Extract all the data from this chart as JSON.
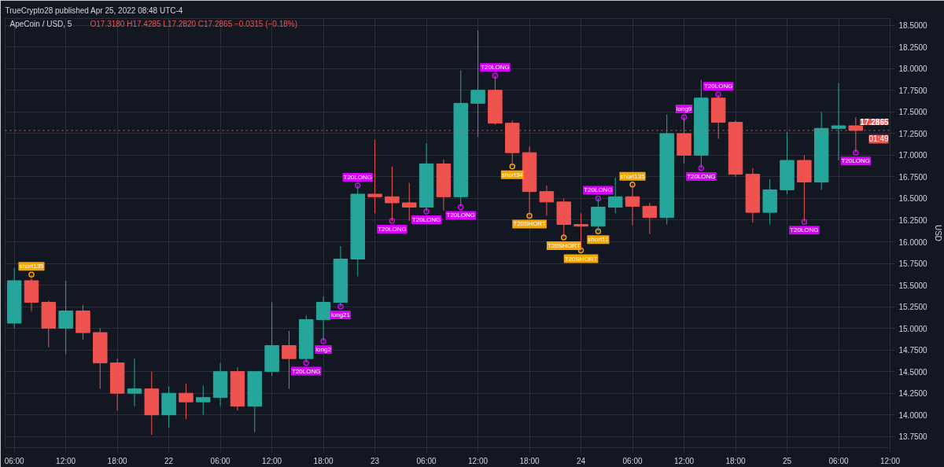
{
  "chart_data": {
    "type": "candlestick",
    "title": "ApeCoin / USD, 5",
    "ylabel": "USD",
    "annotations": [
      "TrueCrypto28 published Apr 25, 2022 08:48 UTC-4",
      "O17.3180 H17.4285 L17.2820 C17.2865 −0.0315 (−0.18%)",
      "01:49"
    ],
    "x": [
      "2022-04-21T06:00",
      "2022-04-21T08:00",
      "2022-04-21T10:00",
      "2022-04-21T12:00",
      "2022-04-21T14:00",
      "2022-04-21T16:00",
      "2022-04-21T18:00",
      "2022-04-21T20:00",
      "2022-04-21T22:00",
      "2022-04-22T00:00",
      "2022-04-22T02:00",
      "2022-04-22T04:00",
      "2022-04-22T06:00",
      "2022-04-22T08:00",
      "2022-04-22T10:00",
      "2022-04-22T12:00",
      "2022-04-22T14:00",
      "2022-04-22T16:00",
      "2022-04-22T18:00",
      "2022-04-22T20:00",
      "2022-04-22T22:00",
      "2022-04-23T00:00",
      "2022-04-23T02:00",
      "2022-04-23T04:00",
      "2022-04-23T06:00",
      "2022-04-23T08:00",
      "2022-04-23T10:00",
      "2022-04-23T12:00",
      "2022-04-23T14:00",
      "2022-04-23T16:00",
      "2022-04-23T18:00",
      "2022-04-23T20:00",
      "2022-04-23T22:00",
      "2022-04-24T00:00",
      "2022-04-24T02:00",
      "2022-04-24T04:00",
      "2022-04-24T06:00",
      "2022-04-24T08:00",
      "2022-04-24T10:00",
      "2022-04-24T12:00",
      "2022-04-24T14:00",
      "2022-04-24T16:00",
      "2022-04-24T18:00",
      "2022-04-24T20:00",
      "2022-04-24T22:00",
      "2022-04-25T00:00",
      "2022-04-25T02:00",
      "2022-04-25T04:00",
      "2022-04-25T06:00",
      "2022-04-25T08:00"
    ],
    "ohlc": [
      [
        15.06,
        15.7,
        15.0,
        15.55
      ],
      [
        15.55,
        15.62,
        15.2,
        15.3
      ],
      [
        15.3,
        15.32,
        14.78,
        15.0
      ],
      [
        15.0,
        15.55,
        14.7,
        15.2
      ],
      [
        15.2,
        15.27,
        14.87,
        14.95
      ],
      [
        14.95,
        15.0,
        14.3,
        14.6
      ],
      [
        14.6,
        14.65,
        14.05,
        14.25
      ],
      [
        14.25,
        14.65,
        14.1,
        14.3
      ],
      [
        14.3,
        14.5,
        13.77,
        14.0
      ],
      [
        14.0,
        14.33,
        13.85,
        14.25
      ],
      [
        14.25,
        14.36,
        13.95,
        14.15
      ],
      [
        14.15,
        14.34,
        14.0,
        14.2
      ],
      [
        14.2,
        14.6,
        14.1,
        14.5
      ],
      [
        14.5,
        14.55,
        14.05,
        14.1
      ],
      [
        14.1,
        14.5,
        13.8,
        14.5
      ],
      [
        14.5,
        15.3,
        14.45,
        14.8
      ],
      [
        14.8,
        14.97,
        14.3,
        14.65
      ],
      [
        14.65,
        15.15,
        14.6,
        15.1
      ],
      [
        15.1,
        15.37,
        14.85,
        15.3
      ],
      [
        15.3,
        15.95,
        15.25,
        15.8
      ],
      [
        15.8,
        16.65,
        15.6,
        16.55
      ],
      [
        16.55,
        17.18,
        16.33,
        16.52
      ],
      [
        16.52,
        16.87,
        16.24,
        16.45
      ],
      [
        16.45,
        16.68,
        16.24,
        16.4
      ],
      [
        16.4,
        17.14,
        16.35,
        16.9
      ],
      [
        16.9,
        16.95,
        16.36,
        16.52
      ],
      [
        16.52,
        17.98,
        16.4,
        17.6
      ],
      [
        17.6,
        18.44,
        17.21,
        17.75
      ],
      [
        17.75,
        17.92,
        17.35,
        17.37
      ],
      [
        17.37,
        17.4,
        16.87,
        17.03
      ],
      [
        17.03,
        17.1,
        16.3,
        16.58
      ],
      [
        16.58,
        16.65,
        16.3,
        16.46
      ],
      [
        16.46,
        16.5,
        16.05,
        16.2
      ],
      [
        16.2,
        16.33,
        15.9,
        16.18
      ],
      [
        16.18,
        16.5,
        16.12,
        16.4
      ],
      [
        16.4,
        16.74,
        16.33,
        16.52
      ],
      [
        16.52,
        16.66,
        16.19,
        16.41
      ],
      [
        16.41,
        16.45,
        16.09,
        16.28
      ],
      [
        16.28,
        17.47,
        16.2,
        17.25
      ],
      [
        17.25,
        17.44,
        16.9,
        17.0
      ],
      [
        17.0,
        17.87,
        16.85,
        17.66
      ],
      [
        17.66,
        17.7,
        17.19,
        17.38
      ],
      [
        17.38,
        17.4,
        16.75,
        16.78
      ],
      [
        16.78,
        16.85,
        16.22,
        16.34
      ],
      [
        16.34,
        16.72,
        16.2,
        16.6
      ],
      [
        16.6,
        17.27,
        16.55,
        16.94
      ],
      [
        16.94,
        17.0,
        16.23,
        16.69
      ],
      [
        16.69,
        17.5,
        16.6,
        17.31
      ],
      [
        17.31,
        17.83,
        16.94,
        17.34
      ],
      [
        17.34,
        17.44,
        17.03,
        17.2865
      ]
    ],
    "colors": [
      "#26a69a",
      "#ef5350",
      "#ef5350",
      "#26a69a",
      "#ef5350",
      "#ef5350",
      "#ef5350",
      "#26a69a",
      "#ef5350",
      "#26a69a",
      "#ef5350",
      "#26a69a",
      "#26a69a",
      "#ef5350",
      "#26a69a",
      "#26a69a",
      "#ef5350",
      "#26a69a",
      "#26a69a",
      "#26a69a",
      "#26a69a",
      "#ef5350",
      "#ef5350",
      "#ef5350",
      "#26a69a",
      "#ef5350",
      "#26a69a",
      "#26a69a",
      "#ef5350",
      "#ef5350",
      "#ef5350",
      "#ef5350",
      "#ef5350",
      "#ef5350",
      "#26a69a",
      "#26a69a",
      "#ef5350",
      "#ef5350",
      "#26a69a",
      "#ef5350",
      "#26a69a",
      "#ef5350",
      "#ef5350",
      "#ef5350",
      "#26a69a",
      "#26a69a",
      "#ef5350",
      "#26a69a",
      "#26a69a",
      "#ef5350"
    ],
    "series": [
      {
        "type": "scatter",
        "color": "#d500f9",
        "x": [
          "2022-04-22T16:00",
          "2022-04-22T18:00",
          "2022-04-22T20:00",
          "2022-04-22T22:00",
          "2022-04-23T02:00",
          "2022-04-23T06:00",
          "2022-04-23T10:00",
          "2022-04-23T14:00",
          "2022-04-24T02:00",
          "2022-04-24T12:00",
          "2022-04-24T14:00",
          "2022-04-24T16:00",
          "2022-04-25T02:00",
          "2022-04-25T08:00"
        ],
        "values": [
          14.6,
          14.85,
          15.25,
          16.65,
          16.24,
          16.35,
          16.4,
          17.92,
          16.5,
          17.44,
          16.85,
          17.7,
          16.23,
          17.03
        ],
        "value_labels": [
          "T20LONG",
          "long2",
          "long21",
          "T20LONG",
          "T20LONG",
          "T20LONG",
          "T20LONG",
          "T20LONG",
          "T20LONG",
          "long9",
          "T20LONG",
          "T20LONG",
          "T20LONG",
          "T20LONG"
        ]
      },
      {
        "type": "scatter",
        "color": "#f7a600",
        "x": [
          "2022-04-21T08:00",
          "2022-04-23T16:00",
          "2022-04-23T18:00",
          "2022-04-23T22:00",
          "2022-04-24T00:00",
          "2022-04-24T02:00",
          "2022-04-24T06:00"
        ],
        "values": [
          15.62,
          16.87,
          16.3,
          16.05,
          15.9,
          16.12,
          16.66
        ],
        "value_labels": [
          "short135",
          "short34",
          "T20SHORT",
          "T20SHORT",
          "T20SHORT",
          "short11",
          "short135"
        ]
      }
    ],
    "xlim": [
      "2022-04-21T04:56",
      "2022-04-25T12:00"
    ],
    "xticks": [
      {
        "value": "2022-04-21T06:00",
        "label": "06:00"
      },
      {
        "value": "2022-04-21T12:00",
        "label": "12:00"
      },
      {
        "value": "2022-04-21T18:00",
        "label": "18:00"
      },
      {
        "value": "2022-04-22T00:00",
        "label": "22"
      },
      {
        "value": "2022-04-22T06:00",
        "label": "06:00"
      },
      {
        "value": "2022-04-22T12:00",
        "label": "12:00"
      },
      {
        "value": "2022-04-22T18:00",
        "label": "18:00"
      },
      {
        "value": "2022-04-23T00:00",
        "label": "23"
      },
      {
        "value": "2022-04-23T06:00",
        "label": "06:00"
      },
      {
        "value": "2022-04-23T12:00",
        "label": "12:00"
      },
      {
        "value": "2022-04-23T18:00",
        "label": "18:00"
      },
      {
        "value": "2022-04-24T00:00",
        "label": "24"
      },
      {
        "value": "2022-04-24T06:00",
        "label": "06:00"
      },
      {
        "value": "2022-04-24T12:00",
        "label": "12:00"
      },
      {
        "value": "2022-04-24T18:00",
        "label": "18:00"
      },
      {
        "value": "2022-04-25T00:00",
        "label": "25"
      },
      {
        "value": "2022-04-25T06:00",
        "label": "06:00"
      },
      {
        "value": "2022-04-25T12:00",
        "label": "12:00"
      }
    ],
    "ylim": [
      13.62,
      18.58
    ],
    "yticks": [
      {
        "value": 13.75,
        "label": "13.7500"
      },
      {
        "value": 14.0,
        "label": "14.0000"
      },
      {
        "value": 14.25,
        "label": "14.2500"
      },
      {
        "value": 14.5,
        "label": "14.5000"
      },
      {
        "value": 14.75,
        "label": "14.7500"
      },
      {
        "value": 15.0,
        "label": "15.0000"
      },
      {
        "value": 15.25,
        "label": "15.2500"
      },
      {
        "value": 15.5,
        "label": "15.5000"
      },
      {
        "value": 15.75,
        "label": "15.7500"
      },
      {
        "value": 16.0,
        "label": "16.0000"
      },
      {
        "value": 16.25,
        "label": "16.2500"
      },
      {
        "value": 16.5,
        "label": "16.5000"
      },
      {
        "value": 16.75,
        "label": "16.7500"
      },
      {
        "value": 17.0,
        "label": "17.0000"
      },
      {
        "value": 17.25,
        "label": "17.2500"
      },
      {
        "value": 17.5,
        "label": "17.5000"
      },
      {
        "value": 17.75,
        "label": "17.7500"
      },
      {
        "value": 18.0,
        "label": "18.0000"
      },
      {
        "value": 18.25,
        "label": "18.2500"
      },
      {
        "value": 18.5,
        "label": "18.5000"
      }
    ],
    "ref_lines": [
      {
        "axis": "y",
        "value": 17.2865,
        "label": "17.2865",
        "color": "#ef5350",
        "line_style": "dotted"
      }
    ],
    "grid": true
  }
}
